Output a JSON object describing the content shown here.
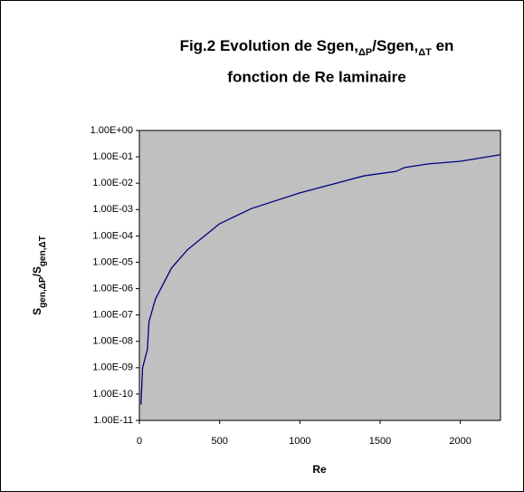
{
  "chart_data": {
    "type": "line",
    "title": {
      "line1": [
        {
          "text": "Fig.2  Evolution de Sgen,"
        },
        {
          "text": "ΔP",
          "sub": true
        },
        {
          "text": "/Sgen,"
        },
        {
          "text": "ΔT",
          "sub": true
        },
        {
          "text": " en"
        }
      ],
      "line2": "fonction de Re laminaire"
    },
    "x_label": "Re",
    "y_label": [
      {
        "text": "S"
      },
      {
        "text": "gen,ΔP",
        "sub": true
      },
      {
        "text": "/S"
      },
      {
        "text": "gen,ΔT",
        "sub": true
      }
    ],
    "x": [
      10,
      20,
      50,
      60,
      100,
      200,
      300,
      500,
      700,
      1000,
      1400,
      1600,
      1650,
      1800,
      2000,
      2250
    ],
    "series": [
      {
        "name": "Sgen",
        "color": "#000080",
        "values": [
          4e-11,
          1e-09,
          5e-09,
          5.6e-08,
          4e-07,
          6e-06,
          3e-05,
          0.00029,
          0.0011,
          0.0043,
          0.019,
          0.028,
          0.039,
          0.054,
          0.068,
          0.12
        ]
      }
    ],
    "xlim": [
      0,
      2250
    ],
    "xticks": [
      0,
      500,
      1000,
      1500,
      2000
    ],
    "ylim": [
      1e-11,
      1
    ],
    "yscale": "log",
    "yticks": [
      {
        "value": 1e-11,
        "label": "1.00E-11"
      },
      {
        "value": 1e-10,
        "label": "1.00E-10"
      },
      {
        "value": 1e-09,
        "label": "1.00E-09"
      },
      {
        "value": 1e-08,
        "label": "1.00E-08"
      },
      {
        "value": 1e-07,
        "label": "1.00E-07"
      },
      {
        "value": 1e-06,
        "label": "1.00E-06"
      },
      {
        "value": 1e-05,
        "label": "1.00E-05"
      },
      {
        "value": 0.0001,
        "label": "1.00E-04"
      },
      {
        "value": 0.001,
        "label": "1.00E-03"
      },
      {
        "value": 0.01,
        "label": "1.00E-02"
      },
      {
        "value": 0.1,
        "label": "1.00E-01"
      },
      {
        "value": 1,
        "label": "1.00E+00"
      }
    ],
    "plot_background": "#c0c0c0",
    "grid": false
  }
}
